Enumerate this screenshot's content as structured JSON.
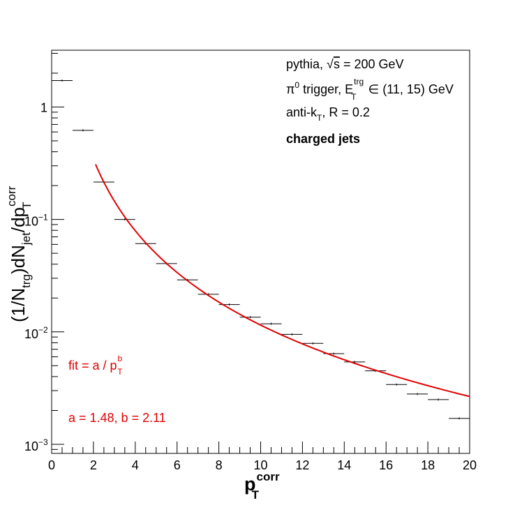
{
  "chart_data": {
    "type": "scatter",
    "xlim": [
      0,
      20
    ],
    "ylim": [
      0.00083,
      3.2
    ],
    "yscale": "log",
    "grid": false,
    "x_ticks": [
      {
        "v": 0,
        "label": "0"
      },
      {
        "v": 2,
        "label": "2"
      },
      {
        "v": 4,
        "label": "4"
      },
      {
        "v": 6,
        "label": "6"
      },
      {
        "v": 8,
        "label": "8"
      },
      {
        "v": 10,
        "label": "10"
      },
      {
        "v": 12,
        "label": "12"
      },
      {
        "v": 14,
        "label": "14"
      },
      {
        "v": 16,
        "label": "16"
      },
      {
        "v": 18,
        "label": "18"
      },
      {
        "v": 20,
        "label": "20"
      }
    ],
    "y_major_ticks": [
      {
        "v": 1,
        "base": "1",
        "exp": ""
      },
      {
        "v": 0.1,
        "base": "10",
        "exp": "−1"
      },
      {
        "v": 0.01,
        "base": "10",
        "exp": "−2"
      },
      {
        "v": 0.001,
        "base": "10",
        "exp": "−3"
      }
    ],
    "xlabel": {
      "main": "p",
      "sub": "T",
      "sup": "corr"
    },
    "ylabel": {
      "p1": "(1/N",
      "s1": "trg",
      "p2": ")dN",
      "s2": "jet",
      "p3": "/dp",
      "s3": "T",
      "sup": "corr"
    },
    "annotations": {
      "line1": {
        "a": "pythia, ",
        "sqrt": "√",
        "s": "s",
        "b": " = 200 GeV"
      },
      "line2": {
        "pi": "π",
        "pisup": "0",
        "a": " trigger, E",
        "sup": "trg",
        "sub": "T",
        "b": " ∈ (11, 15) GeV"
      },
      "line3": {
        "a": "anti-k",
        "sub": "T",
        "b": ", R = 0.2"
      },
      "line4": "charged jets"
    },
    "fit_label": {
      "a": "fit = a / p",
      "sup": "b",
      "sub": "T"
    },
    "fit_params": "a = 1.48, b = 2.11",
    "fit": {
      "a": 1.48,
      "b": 2.11,
      "x_from": 2.1,
      "x_to": 20,
      "color": "#e00000"
    },
    "series": [
      {
        "color": "#000000",
        "points": [
          {
            "x0": 0,
            "x1": 1,
            "y": 1.72
          },
          {
            "x0": 1,
            "x1": 2,
            "y": 0.62
          },
          {
            "x0": 2,
            "x1": 3,
            "y": 0.215
          },
          {
            "x0": 3,
            "x1": 4,
            "y": 0.1
          },
          {
            "x0": 4,
            "x1": 5,
            "y": 0.061
          },
          {
            "x0": 5,
            "x1": 6,
            "y": 0.0405
          },
          {
            "x0": 6,
            "x1": 7,
            "y": 0.029
          },
          {
            "x0": 7,
            "x1": 8,
            "y": 0.0216
          },
          {
            "x0": 8,
            "x1": 9,
            "y": 0.0175
          },
          {
            "x0": 9,
            "x1": 10,
            "y": 0.0135
          },
          {
            "x0": 10,
            "x1": 11,
            "y": 0.0118
          },
          {
            "x0": 11,
            "x1": 12,
            "y": 0.0095
          },
          {
            "x0": 12,
            "x1": 13,
            "y": 0.0079
          },
          {
            "x0": 13,
            "x1": 14,
            "y": 0.0064
          },
          {
            "x0": 14,
            "x1": 15,
            "y": 0.0054
          },
          {
            "x0": 15,
            "x1": 16,
            "y": 0.0045
          },
          {
            "x0": 16,
            "x1": 17,
            "y": 0.0034
          },
          {
            "x0": 17,
            "x1": 18,
            "y": 0.0028
          },
          {
            "x0": 18,
            "x1": 19,
            "y": 0.0025
          },
          {
            "x0": 19,
            "x1": 20,
            "y": 0.0017
          }
        ]
      }
    ]
  }
}
